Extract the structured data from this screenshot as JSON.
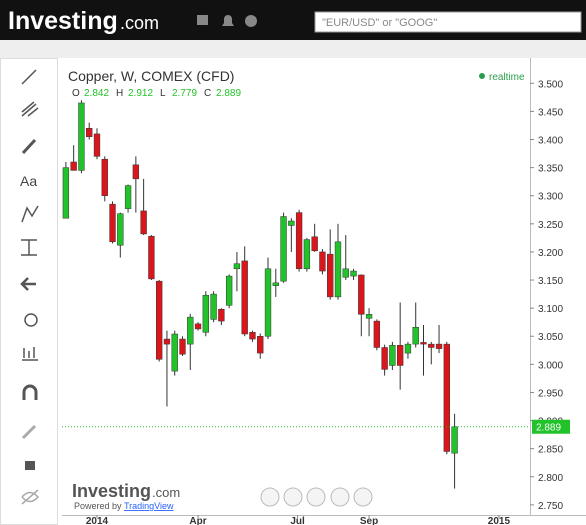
{
  "header": {
    "logo": "Investing",
    "logo_suffix": ".com",
    "search_placeholder": "\"EUR/USD\" or \"GOOG\""
  },
  "chart_data": {
    "type": "candlestick",
    "title": "Copper, W, COMEX (CFD)",
    "status": "realtime",
    "ohlc_legend": [
      {
        "label": "O",
        "value": "2.842"
      },
      {
        "label": "H",
        "value": "2.912"
      },
      {
        "label": "L",
        "value": "2.779"
      },
      {
        "label": "C",
        "value": "2.889"
      }
    ],
    "open": [
      3.26,
      3.36,
      3.345,
      3.42,
      3.41,
      3.365,
      3.285,
      3.212,
      3.277,
      3.355,
      3.273,
      3.228,
      3.148,
      3.045,
      2.988,
      3.045,
      3.036,
      3.072,
      3.057,
      3.08,
      3.098,
      3.105,
      3.17,
      3.184,
      3.057,
      3.05,
      3.05,
      3.14,
      3.148,
      3.247,
      3.27,
      3.17,
      3.227,
      3.2,
      3.196,
      3.12,
      3.155,
      3.157,
      3.159,
      3.082,
      3.077,
      3.03,
      2.998,
      3.034,
      3.02,
      3.036,
      3.039,
      3.036,
      3.036,
      3.036,
      2.842
    ],
    "high": [
      3.36,
      3.39,
      3.47,
      3.43,
      3.42,
      3.37,
      3.29,
      3.27,
      3.32,
      3.37,
      3.33,
      3.23,
      3.15,
      3.06,
      3.06,
      3.05,
      3.09,
      3.075,
      3.13,
      3.13,
      3.1,
      3.16,
      3.2,
      3.21,
      3.06,
      3.055,
      3.19,
      3.17,
      3.27,
      3.26,
      3.275,
      3.225,
      3.25,
      3.205,
      3.24,
      3.25,
      3.23,
      3.17,
      3.16,
      3.1,
      3.08,
      3.035,
      3.04,
      3.11,
      3.04,
      3.11,
      3.07,
      3.04,
      3.07,
      3.04,
      2.912
    ],
    "low": [
      3.26,
      3.345,
      3.34,
      3.4,
      3.365,
      3.29,
      3.215,
      3.19,
      3.27,
      3.27,
      3.23,
      3.15,
      3.005,
      2.925,
      2.98,
      3.015,
      2.99,
      3.06,
      3.05,
      3.075,
      3.07,
      3.1,
      3.13,
      3.05,
      3.04,
      3.01,
      3.045,
      3.12,
      3.145,
      3.2,
      3.165,
      3.165,
      3.2,
      3.16,
      3.115,
      3.115,
      3.15,
      3.15,
      3.05,
      3.05,
      3.025,
      2.98,
      2.99,
      2.955,
      3.01,
      3.03,
      2.98,
      3.0,
      3.02,
      2.84,
      2.779
    ],
    "close": [
      3.35,
      3.345,
      3.465,
      3.405,
      3.37,
      3.3,
      3.218,
      3.268,
      3.318,
      3.33,
      3.232,
      3.152,
      3.009,
      3.036,
      3.054,
      3.018,
      3.084,
      3.063,
      3.123,
      3.125,
      3.077,
      3.157,
      3.179,
      3.054,
      3.045,
      3.02,
      3.17,
      3.145,
      3.263,
      3.255,
      3.17,
      3.222,
      3.202,
      3.166,
      3.12,
      3.218,
      3.17,
      3.166,
      3.089,
      3.089,
      3.03,
      2.991,
      3.034,
      2.998,
      3.036,
      3.066,
      3.036,
      3.03,
      3.028,
      2.845,
      2.889
    ],
    "up_color": "#22c22a",
    "down_color": "#d9161c",
    "last_price": {
      "value": 2.889,
      "label": "2.889"
    },
    "ylim": [
      2.732,
      3.545
    ],
    "yticks": [
      {
        "value": 2.75,
        "label": "2.750"
      },
      {
        "value": 2.8,
        "label": "2.800"
      },
      {
        "value": 2.85,
        "label": "2.850"
      },
      {
        "value": 2.9,
        "label": "2.900"
      },
      {
        "value": 2.95,
        "label": "2.950"
      },
      {
        "value": 3.0,
        "label": "3.000"
      },
      {
        "value": 3.05,
        "label": "3.050"
      },
      {
        "value": 3.1,
        "label": "3.100"
      },
      {
        "value": 3.15,
        "label": "3.150"
      },
      {
        "value": 3.2,
        "label": "3.200"
      },
      {
        "value": 3.25,
        "label": "3.250"
      },
      {
        "value": 3.3,
        "label": "3.300"
      },
      {
        "value": 3.35,
        "label": "3.350"
      },
      {
        "value": 3.4,
        "label": "3.400"
      },
      {
        "value": 3.45,
        "label": "3.450"
      },
      {
        "value": 3.5,
        "label": "3.500"
      }
    ],
    "xlim": [
      -0.5,
      59.7
    ],
    "xticks": [
      {
        "value": 4,
        "label": "2014"
      },
      {
        "value": 17,
        "label": "Apr"
      },
      {
        "value": 29.8,
        "label": "Jul"
      },
      {
        "value": 39,
        "label": "Sep"
      },
      {
        "value": 55.7,
        "label": "2015"
      }
    ]
  },
  "footer": {
    "watermark": "Investing",
    "watermark_suffix": ".com",
    "powered_by": "Powered by",
    "powered_by_link": "TradingView"
  }
}
